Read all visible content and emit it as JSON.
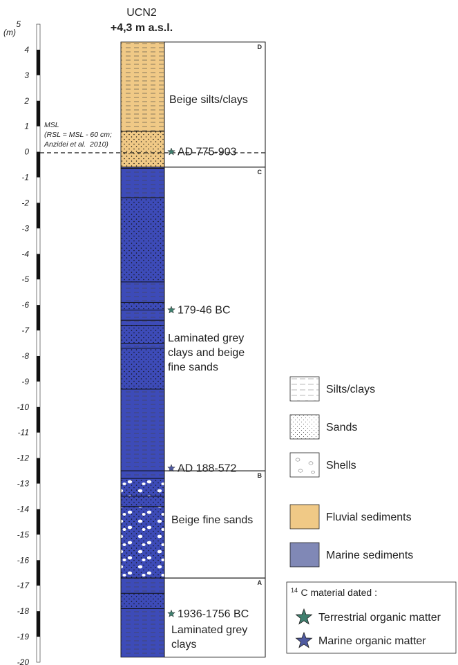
{
  "core": {
    "name": "UCN2",
    "elevation": "+4,3 m a.s.l."
  },
  "axis": {
    "unit_label": "(m)",
    "top": 5,
    "bottom": -20,
    "ticks": [
      "5",
      "4",
      "3",
      "2",
      "1",
      "0",
      "-1",
      "-2",
      "-3",
      "-4",
      "-5",
      "-6",
      "-7",
      "-8",
      "-9",
      "-10",
      "-11",
      "-12",
      "-13",
      "-14",
      "-15",
      "-16",
      "-17",
      "-18",
      "-19",
      "-20"
    ]
  },
  "msl": {
    "label": "MSL",
    "note_line1": "(RSL = MSL - 60 cm;",
    "note_line2_prefix": "Anzidei et al.",
    "note_line2_year": "2010)"
  },
  "units": [
    {
      "id": "D",
      "top": 4.3,
      "bottom": -0.6
    },
    {
      "id": "C",
      "top": -0.6,
      "bottom": -12.5
    },
    {
      "id": "B",
      "top": -12.5,
      "bottom": -16.7
    },
    {
      "id": "A",
      "top": -16.7,
      "bottom": -19.8
    }
  ],
  "descriptions": {
    "D": "Beige silts/clays",
    "C_line1": "Laminated grey",
    "C_line2": "clays and beige",
    "C_line3": "fine sands",
    "B": "Beige fine sands",
    "A_line1": "Laminated grey",
    "A_line2": "clays"
  },
  "layers": [
    {
      "top": 4.3,
      "bottom": 0.8,
      "sediment": "fluvial",
      "lithology": "silts/clays"
    },
    {
      "top": 0.8,
      "bottom": -0.6,
      "sediment": "fluvial",
      "lithology": "sands"
    },
    {
      "top": -0.6,
      "bottom": -0.65,
      "sediment": "marine",
      "lithology": "silts/clays"
    },
    {
      "top": -0.65,
      "bottom": -1.8,
      "sediment": "marine",
      "lithology": "silts/clays"
    },
    {
      "top": -1.8,
      "bottom": -5.1,
      "sediment": "marine",
      "lithology": "sands"
    },
    {
      "top": -5.1,
      "bottom": -5.9,
      "sediment": "marine",
      "lithology": "silts/clays"
    },
    {
      "top": -5.9,
      "bottom": -6.2,
      "sediment": "marine",
      "lithology": "sands"
    },
    {
      "top": -6.2,
      "bottom": -6.6,
      "sediment": "marine",
      "lithology": "silts/clays"
    },
    {
      "top": -6.6,
      "bottom": -6.8,
      "sediment": "marine",
      "lithology": "silts/clays"
    },
    {
      "top": -6.8,
      "bottom": -7.5,
      "sediment": "marine",
      "lithology": "sands"
    },
    {
      "top": -7.5,
      "bottom": -7.7,
      "sediment": "marine",
      "lithology": "silts/clays"
    },
    {
      "top": -7.7,
      "bottom": -9.3,
      "sediment": "marine",
      "lithology": "sands"
    },
    {
      "top": -9.3,
      "bottom": -12.5,
      "sediment": "marine",
      "lithology": "silts/clays"
    },
    {
      "top": -12.5,
      "bottom": -12.8,
      "sediment": "marine",
      "lithology": "silts/clays"
    },
    {
      "top": -12.8,
      "bottom": -13.5,
      "sediment": "marine",
      "lithology": "sands with shells"
    },
    {
      "top": -13.5,
      "bottom": -13.9,
      "sediment": "marine",
      "lithology": "sands"
    },
    {
      "top": -13.9,
      "bottom": -16.7,
      "sediment": "marine",
      "lithology": "sands with shells"
    },
    {
      "top": -16.7,
      "bottom": -17.3,
      "sediment": "marine",
      "lithology": "silts/clays"
    },
    {
      "top": -17.3,
      "bottom": -17.9,
      "sediment": "marine",
      "lithology": "sands"
    },
    {
      "top": -17.9,
      "bottom": -19.8,
      "sediment": "marine",
      "lithology": "silts/clays"
    }
  ],
  "dates": [
    {
      "label": "AD 775-903",
      "depth": 0.0,
      "material": "terrestrial"
    },
    {
      "label": "179-46 BC",
      "depth": -6.2,
      "material": "terrestrial"
    },
    {
      "label": "AD 188-572",
      "depth": -12.4,
      "material": "marine"
    },
    {
      "label": "1936-1756 BC",
      "depth": -18.1,
      "material": "terrestrial"
    }
  ],
  "legend": {
    "silts": "Silts/clays",
    "sands": "Sands",
    "shells": "Shells",
    "fluvial": "Fluvial sediments",
    "marine": "Marine sediments",
    "c14_sup": "14",
    "c14_title": "C material dated :",
    "terrestrial": "Terrestrial organic matter",
    "marine_om": "Marine organic matter"
  },
  "colors": {
    "fluvial": "#f0c986",
    "marine": "#3d4bb8",
    "terrestrial_star": "#3f7f6e",
    "marine_star": "#4f5aa0",
    "legend_marine": "#8088b6"
  }
}
